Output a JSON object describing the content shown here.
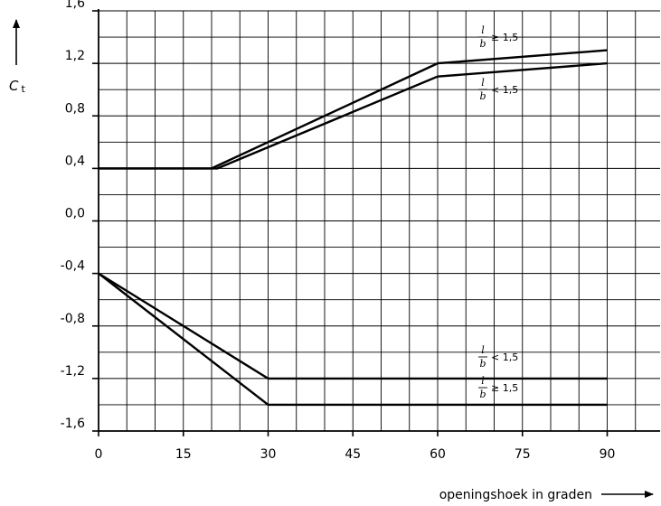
{
  "chart_data": {
    "type": "line",
    "ylabel": "C",
    "ylabel_sub": "t",
    "xlabel": "openingshoek in graden",
    "xlim": [
      0,
      100
    ],
    "ylim": [
      -1.6,
      1.6
    ],
    "x_ticks": [
      {
        "value": 0,
        "label": "0"
      },
      {
        "value": 15,
        "label": "15"
      },
      {
        "value": 30,
        "label": "30"
      },
      {
        "value": 45,
        "label": "45"
      },
      {
        "value": 60,
        "label": "60"
      },
      {
        "value": 75,
        "label": "75"
      },
      {
        "value": 90,
        "label": "90"
      }
    ],
    "y_ticks": [
      {
        "value": 1.6,
        "label": "1,6"
      },
      {
        "value": 1.2,
        "label": "1,2"
      },
      {
        "value": 0.8,
        "label": "0,8"
      },
      {
        "value": 0.4,
        "label": "0,4"
      },
      {
        "value": 0.0,
        "label": "0,0"
      },
      {
        "value": -0.4,
        "label": "-0,4"
      },
      {
        "value": -0.8,
        "label": "-0,8"
      },
      {
        "value": -1.2,
        "label": "-1,2"
      },
      {
        "value": -1.6,
        "label": "-1,6"
      }
    ],
    "grid": true,
    "grid_step_x": 5,
    "grid_step_y": 0.2,
    "series": [
      {
        "label_l": "l",
        "label_b": "b",
        "label_op": "≥ 1,5",
        "points": [
          [
            0,
            0.4
          ],
          [
            20,
            0.4
          ],
          [
            60,
            1.2
          ],
          [
            90,
            1.3
          ]
        ]
      },
      {
        "label_l": "l",
        "label_b": "b",
        "label_op": "< 1,5",
        "points": [
          [
            0,
            0.4
          ],
          [
            21,
            0.4
          ],
          [
            60,
            1.1
          ],
          [
            90,
            1.2
          ]
        ]
      },
      {
        "label_l": "l",
        "label_b": "b",
        "label_op": "< 1,5",
        "points": [
          [
            0,
            -0.4
          ],
          [
            30,
            -1.2
          ],
          [
            90,
            -1.2
          ]
        ]
      },
      {
        "label_l": "l",
        "label_b": "b",
        "label_op": "≥ 1,5",
        "points": [
          [
            0,
            -0.4
          ],
          [
            30,
            -1.4
          ],
          [
            90,
            -1.4
          ]
        ]
      }
    ]
  }
}
